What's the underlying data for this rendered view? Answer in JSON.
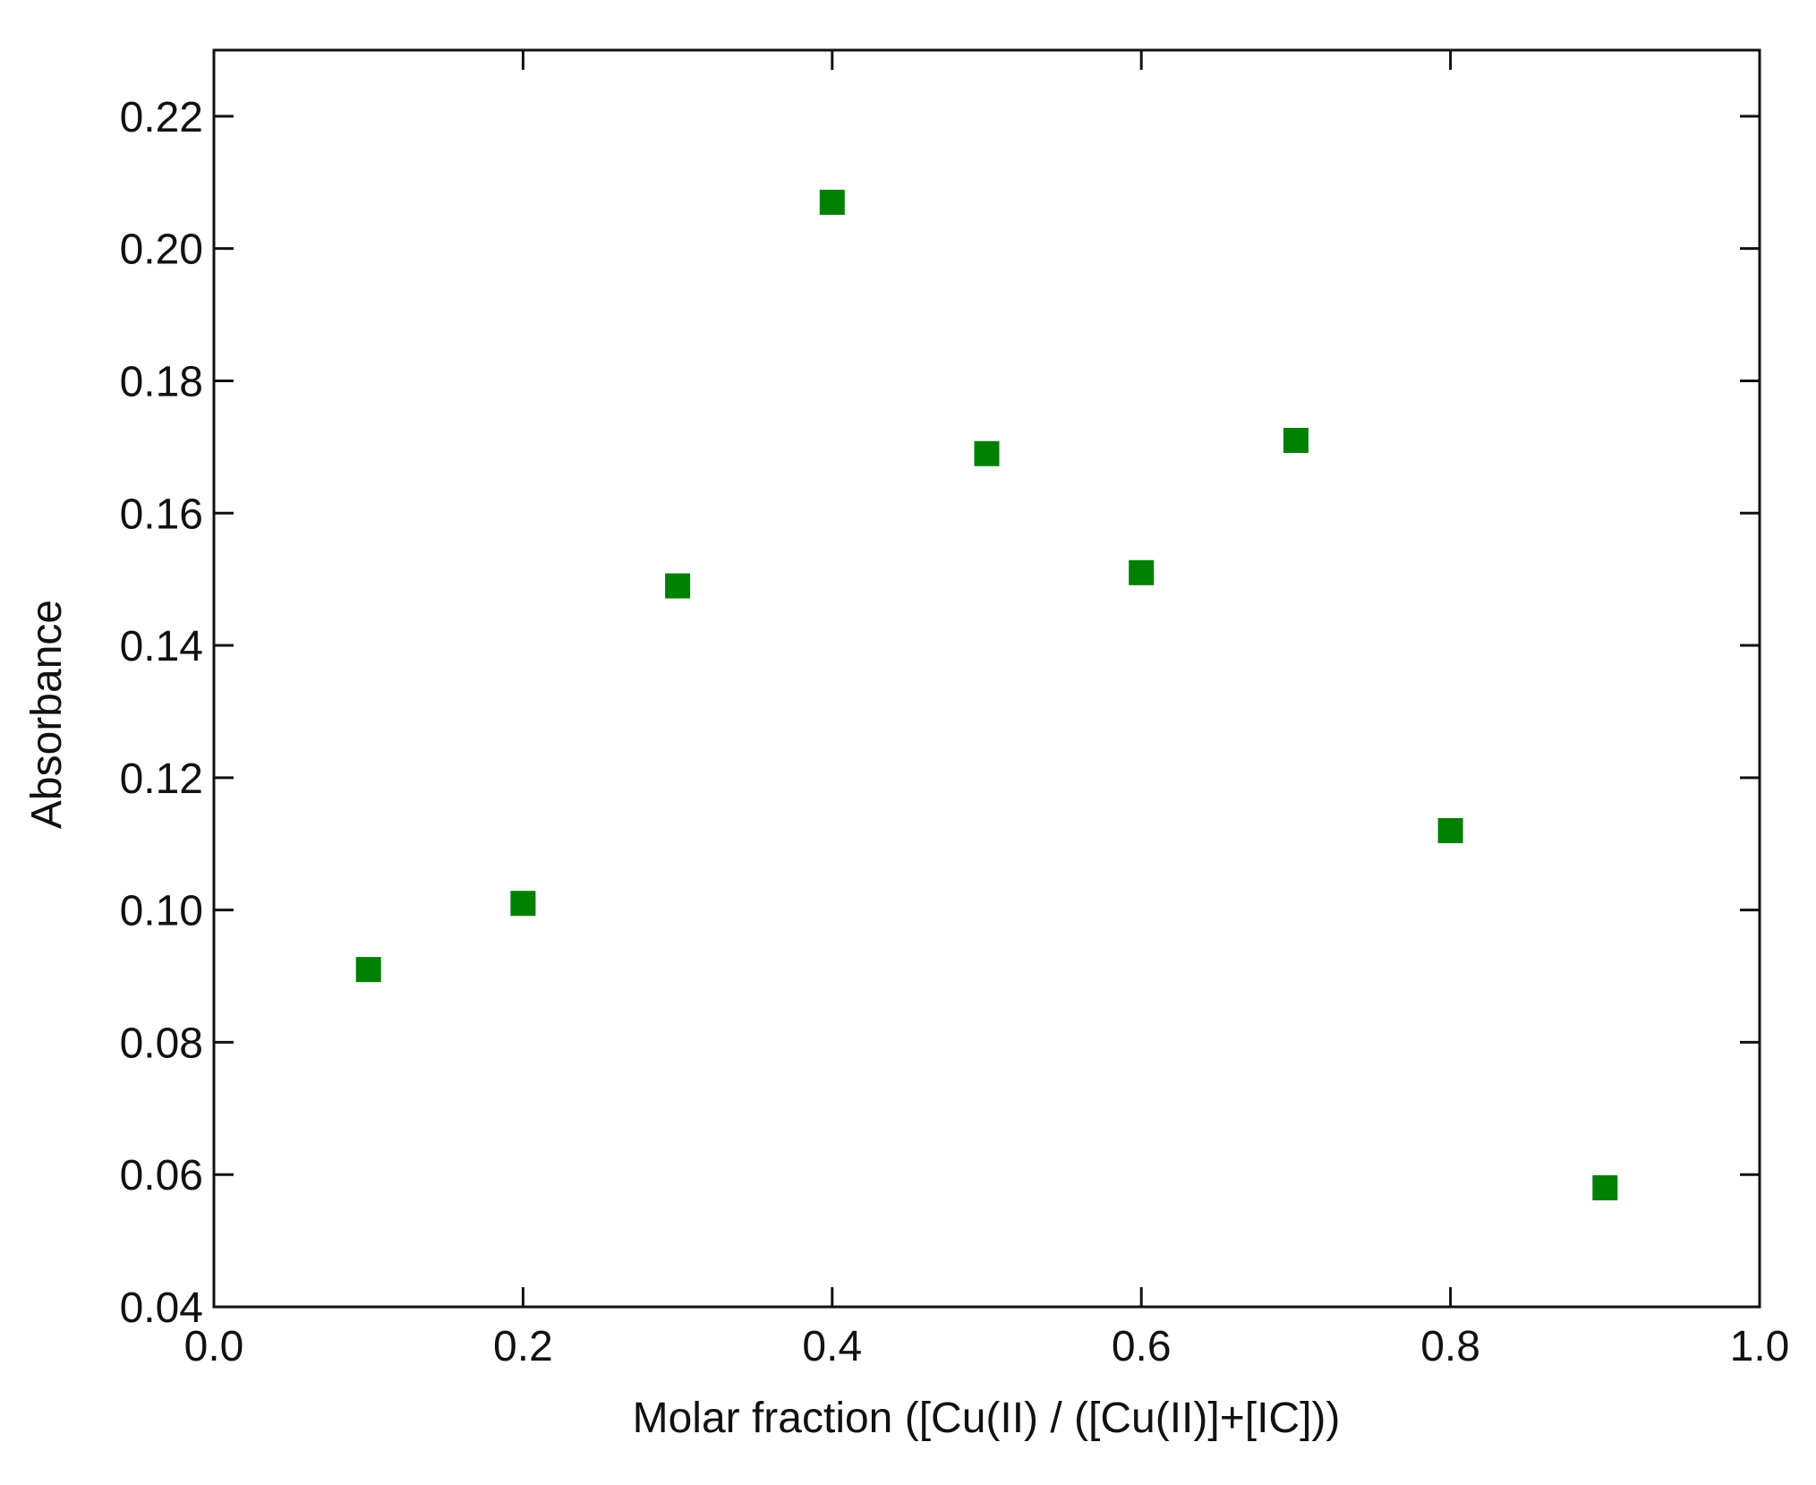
{
  "chart_data": {
    "type": "scatter",
    "x_label": "Molar fraction ([Cu(II) / ([Cu(II)]+[IC]))",
    "y_label": "Absorbance",
    "series": [
      {
        "color": "#008000",
        "x": [
          0.1,
          0.2,
          0.3,
          0.4,
          0.5,
          0.6,
          0.7,
          0.8,
          0.9
        ],
        "values": [
          0.091,
          0.101,
          0.149,
          0.207,
          0.169,
          0.151,
          0.171,
          0.112,
          0.058
        ]
      }
    ],
    "xlim": [
      0,
      1
    ],
    "xticks": [
      {
        "value": 0,
        "label": "0.0"
      },
      0.2,
      0.4,
      0.6,
      0.8,
      {
        "value": 1,
        "label": "1.0"
      }
    ],
    "ylim": [
      0.04,
      0.23
    ],
    "yticks": [
      0.04,
      0.06,
      0.08,
      {
        "value": 0.1,
        "label": "0.10"
      },
      0.12,
      0.14,
      0.16,
      0.18,
      {
        "value": 0.2,
        "label": "0.20"
      },
      0.22
    ],
    "grid": false
  }
}
